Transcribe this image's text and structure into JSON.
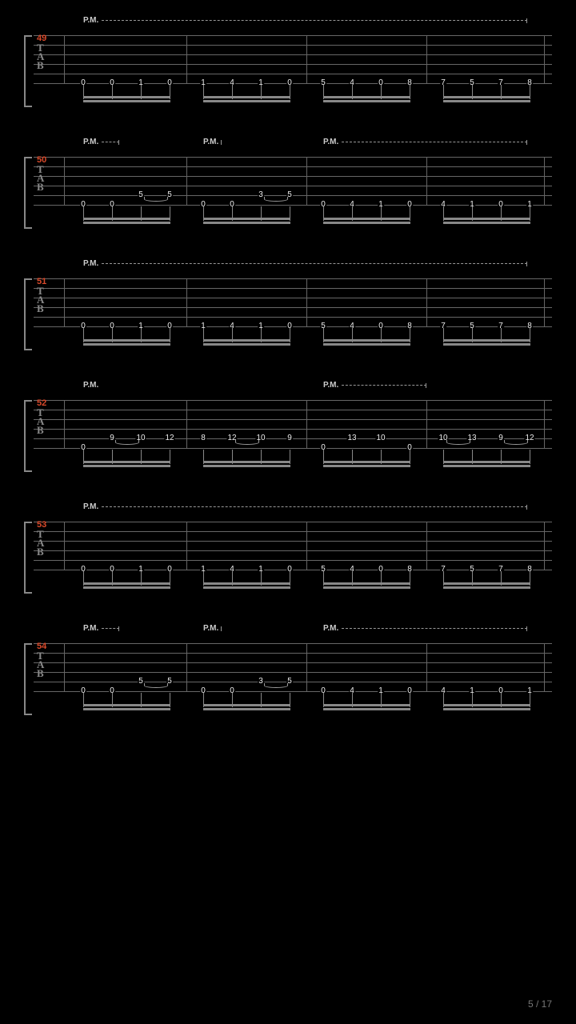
{
  "page_number": "5 / 17",
  "colors": {
    "background": "#000000",
    "staff_line": "#666666",
    "note_text": "#eeeeee",
    "measure_num": "#d94a2b",
    "pm_text": "#cccccc",
    "beam": "#888888",
    "tab_letter": "#888888"
  },
  "layout": {
    "staff_height": 60,
    "string_count": 6,
    "strings_y": [
      0,
      12,
      24,
      36,
      48,
      60
    ],
    "left_margin": 50,
    "content_width": 600,
    "beat_positions": [
      0.04,
      0.1,
      0.16,
      0.22,
      0.29,
      0.35,
      0.41,
      0.47,
      0.54,
      0.6,
      0.66,
      0.72,
      0.79,
      0.85,
      0.91,
      0.97
    ],
    "bar_positions": [
      0,
      0.255,
      0.505,
      0.755,
      1.0
    ],
    "beam_groups": [
      [
        0,
        3
      ],
      [
        4,
        7
      ],
      [
        8,
        11
      ],
      [
        12,
        15
      ]
    ]
  },
  "measures": [
    {
      "number": "49",
      "pm": [
        {
          "label": "P.M.",
          "x": 0.04,
          "w": 0.93,
          "end": true
        }
      ],
      "notes": [
        {
          "s": 5,
          "p": 0,
          "f": "0"
        },
        {
          "s": 5,
          "p": 1,
          "f": "0"
        },
        {
          "s": 5,
          "p": 2,
          "f": "1"
        },
        {
          "s": 5,
          "p": 3,
          "f": "0"
        },
        {
          "s": 5,
          "p": 4,
          "f": "1"
        },
        {
          "s": 5,
          "p": 5,
          "f": "4"
        },
        {
          "s": 5,
          "p": 6,
          "f": "1"
        },
        {
          "s": 5,
          "p": 7,
          "f": "0"
        },
        {
          "s": 5,
          "p": 8,
          "f": "5"
        },
        {
          "s": 5,
          "p": 9,
          "f": "4"
        },
        {
          "s": 5,
          "p": 10,
          "f": "0"
        },
        {
          "s": 5,
          "p": 11,
          "f": "8"
        },
        {
          "s": 5,
          "p": 12,
          "f": "7"
        },
        {
          "s": 5,
          "p": 13,
          "f": "5"
        },
        {
          "s": 5,
          "p": 14,
          "f": "7"
        },
        {
          "s": 5,
          "p": 15,
          "f": "8"
        }
      ],
      "ties": []
    },
    {
      "number": "50",
      "pm": [
        {
          "label": "P.M.",
          "x": 0.04,
          "w": 0.08,
          "end": true
        },
        {
          "label": "P.M.",
          "x": 0.29,
          "w": 0.04,
          "end": true
        },
        {
          "label": "P.M.",
          "x": 0.54,
          "w": 0.43,
          "end": true
        }
      ],
      "notes": [
        {
          "s": 5,
          "p": 0,
          "f": "0"
        },
        {
          "s": 5,
          "p": 1,
          "f": "0"
        },
        {
          "s": 4,
          "p": 2,
          "f": "5"
        },
        {
          "s": 4,
          "p": 3,
          "f": "5"
        },
        {
          "s": 5,
          "p": 4,
          "f": "0"
        },
        {
          "s": 5,
          "p": 5,
          "f": "0"
        },
        {
          "s": 4,
          "p": 6,
          "f": "3"
        },
        {
          "s": 4,
          "p": 7,
          "f": "5"
        },
        {
          "s": 5,
          "p": 8,
          "f": "0"
        },
        {
          "s": 5,
          "p": 9,
          "f": "4"
        },
        {
          "s": 5,
          "p": 10,
          "f": "1"
        },
        {
          "s": 5,
          "p": 11,
          "f": "0"
        },
        {
          "s": 5,
          "p": 12,
          "f": "4"
        },
        {
          "s": 5,
          "p": 13,
          "f": "1"
        },
        {
          "s": 5,
          "p": 14,
          "f": "0"
        },
        {
          "s": 5,
          "p": 15,
          "f": "1"
        }
      ],
      "ties": [
        {
          "s": 4,
          "p1": 2,
          "p2": 3
        },
        {
          "s": 4,
          "p1": 6,
          "p2": 7
        }
      ]
    },
    {
      "number": "51",
      "pm": [
        {
          "label": "P.M.",
          "x": 0.04,
          "w": 0.93,
          "end": true
        }
      ],
      "notes": [
        {
          "s": 5,
          "p": 0,
          "f": "0"
        },
        {
          "s": 5,
          "p": 1,
          "f": "0"
        },
        {
          "s": 5,
          "p": 2,
          "f": "1"
        },
        {
          "s": 5,
          "p": 3,
          "f": "0"
        },
        {
          "s": 5,
          "p": 4,
          "f": "1"
        },
        {
          "s": 5,
          "p": 5,
          "f": "4"
        },
        {
          "s": 5,
          "p": 6,
          "f": "1"
        },
        {
          "s": 5,
          "p": 7,
          "f": "0"
        },
        {
          "s": 5,
          "p": 8,
          "f": "5"
        },
        {
          "s": 5,
          "p": 9,
          "f": "4"
        },
        {
          "s": 5,
          "p": 10,
          "f": "0"
        },
        {
          "s": 5,
          "p": 11,
          "f": "8"
        },
        {
          "s": 5,
          "p": 12,
          "f": "7"
        },
        {
          "s": 5,
          "p": 13,
          "f": "5"
        },
        {
          "s": 5,
          "p": 14,
          "f": "7"
        },
        {
          "s": 5,
          "p": 15,
          "f": "8"
        }
      ],
      "ties": []
    },
    {
      "number": "52",
      "pm": [
        {
          "label": "P.M.",
          "x": 0.04,
          "w": 0.01,
          "end": false
        },
        {
          "label": "P.M.",
          "x": 0.54,
          "w": 0.22,
          "end": true
        }
      ],
      "notes": [
        {
          "s": 5,
          "p": 0,
          "f": "0"
        },
        {
          "s": 4,
          "p": 1,
          "f": "9"
        },
        {
          "s": 4,
          "p": 2,
          "f": "10"
        },
        {
          "s": 4,
          "p": 3,
          "f": "12"
        },
        {
          "s": 4,
          "p": 4,
          "f": "8"
        },
        {
          "s": 4,
          "p": 5,
          "f": "12"
        },
        {
          "s": 4,
          "p": 6,
          "f": "10"
        },
        {
          "s": 4,
          "p": 7,
          "f": "9"
        },
        {
          "s": 5,
          "p": 8,
          "f": "0"
        },
        {
          "s": 4,
          "p": 9,
          "f": "13"
        },
        {
          "s": 4,
          "p": 10,
          "f": "10"
        },
        {
          "s": 5,
          "p": 11,
          "f": "0"
        },
        {
          "s": 4,
          "p": 12,
          "f": "10"
        },
        {
          "s": 4,
          "p": 13,
          "f": "13"
        },
        {
          "s": 4,
          "p": 14,
          "f": "9"
        },
        {
          "s": 4,
          "p": 15,
          "f": "12"
        }
      ],
      "ties": [
        {
          "s": 4,
          "p1": 1,
          "p2": 2
        },
        {
          "s": 4,
          "p1": 5,
          "p2": 6
        },
        {
          "s": 4,
          "p1": 12,
          "p2": 13
        },
        {
          "s": 4,
          "p1": 14,
          "p2": 15
        }
      ]
    },
    {
      "number": "53",
      "pm": [
        {
          "label": "P.M.",
          "x": 0.04,
          "w": 0.93,
          "end": true
        }
      ],
      "notes": [
        {
          "s": 5,
          "p": 0,
          "f": "0"
        },
        {
          "s": 5,
          "p": 1,
          "f": "0"
        },
        {
          "s": 5,
          "p": 2,
          "f": "1"
        },
        {
          "s": 5,
          "p": 3,
          "f": "0"
        },
        {
          "s": 5,
          "p": 4,
          "f": "1"
        },
        {
          "s": 5,
          "p": 5,
          "f": "4"
        },
        {
          "s": 5,
          "p": 6,
          "f": "1"
        },
        {
          "s": 5,
          "p": 7,
          "f": "0"
        },
        {
          "s": 5,
          "p": 8,
          "f": "5"
        },
        {
          "s": 5,
          "p": 9,
          "f": "4"
        },
        {
          "s": 5,
          "p": 10,
          "f": "0"
        },
        {
          "s": 5,
          "p": 11,
          "f": "8"
        },
        {
          "s": 5,
          "p": 12,
          "f": "7"
        },
        {
          "s": 5,
          "p": 13,
          "f": "5"
        },
        {
          "s": 5,
          "p": 14,
          "f": "7"
        },
        {
          "s": 5,
          "p": 15,
          "f": "8"
        }
      ],
      "ties": []
    },
    {
      "number": "54",
      "pm": [
        {
          "label": "P.M.",
          "x": 0.04,
          "w": 0.08,
          "end": true
        },
        {
          "label": "P.M.",
          "x": 0.29,
          "w": 0.04,
          "end": true
        },
        {
          "label": "P.M.",
          "x": 0.54,
          "w": 0.43,
          "end": true
        }
      ],
      "notes": [
        {
          "s": 5,
          "p": 0,
          "f": "0"
        },
        {
          "s": 5,
          "p": 1,
          "f": "0"
        },
        {
          "s": 4,
          "p": 2,
          "f": "5"
        },
        {
          "s": 4,
          "p": 3,
          "f": "5"
        },
        {
          "s": 5,
          "p": 4,
          "f": "0"
        },
        {
          "s": 5,
          "p": 5,
          "f": "0"
        },
        {
          "s": 4,
          "p": 6,
          "f": "3"
        },
        {
          "s": 4,
          "p": 7,
          "f": "5"
        },
        {
          "s": 5,
          "p": 8,
          "f": "0"
        },
        {
          "s": 5,
          "p": 9,
          "f": "4"
        },
        {
          "s": 5,
          "p": 10,
          "f": "1"
        },
        {
          "s": 5,
          "p": 11,
          "f": "0"
        },
        {
          "s": 5,
          "p": 12,
          "f": "4"
        },
        {
          "s": 5,
          "p": 13,
          "f": "1"
        },
        {
          "s": 5,
          "p": 14,
          "f": "0"
        },
        {
          "s": 5,
          "p": 15,
          "f": "1"
        }
      ],
      "ties": [
        {
          "s": 4,
          "p1": 2,
          "p2": 3
        },
        {
          "s": 4,
          "p1": 6,
          "p2": 7
        }
      ]
    }
  ]
}
